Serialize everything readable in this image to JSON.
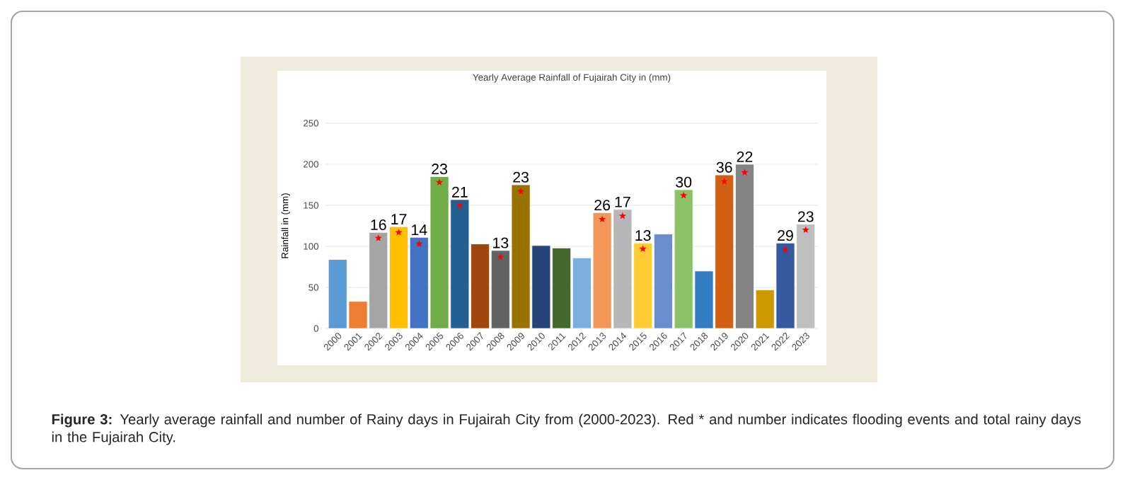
{
  "chart_data": {
    "type": "bar",
    "title": "Yearly Average Rainfall of Fujairah City in (mm)",
    "ylabel": "Rainfall in (mm)",
    "categories": [
      "2000",
      "2001",
      "2002",
      "2003",
      "2004",
      "2005",
      "2006",
      "2007",
      "2008",
      "2009",
      "2010",
      "2011",
      "2012",
      "2013",
      "2014",
      "2015",
      "2016",
      "2017",
      "2018",
      "2019",
      "2020",
      "2021",
      "2022",
      "2023"
    ],
    "values": [
      84,
      33,
      117,
      124,
      111,
      185,
      157,
      103,
      95,
      175,
      101,
      98,
      86,
      141,
      145,
      104,
      115,
      169,
      70,
      187,
      200,
      47,
      104,
      127
    ],
    "colors": [
      "#5b9bd5",
      "#ed7d31",
      "#a5a5a5",
      "#ffc000",
      "#4472c4",
      "#70ad47",
      "#255e91",
      "#9e480e",
      "#636363",
      "#997300",
      "#264478",
      "#43682b",
      "#7cafdd",
      "#f1975a",
      "#b7b7b7",
      "#ffcd33",
      "#698ed0",
      "#8cc168",
      "#327dc2",
      "#d26012",
      "#848484",
      "#cc9a00",
      "#335aa1",
      "#bfbfbf"
    ],
    "series": [
      {
        "type": "scatter",
        "color": "#ff0000",
        "marker": "star",
        "values": [
          null,
          null,
          110,
          117,
          103,
          178,
          150,
          null,
          87,
          167,
          null,
          null,
          null,
          133,
          137,
          97,
          null,
          162,
          null,
          179,
          190,
          null,
          96,
          120
        ]
      }
    ],
    "ylim": [
      0,
      250
    ],
    "yticks": [
      0,
      50,
      100,
      150,
      200,
      250
    ],
    "grid": "y",
    "annotations": [
      {
        "text": "16",
        "x": "2002",
        "y": 117
      },
      {
        "text": "17",
        "x": "2003",
        "y": 124
      },
      {
        "text": "14",
        "x": "2004",
        "y": 111
      },
      {
        "text": "23",
        "x": "2005",
        "y": 185
      },
      {
        "text": "21",
        "x": "2006",
        "y": 157
      },
      {
        "text": "13",
        "x": "2008",
        "y": 95
      },
      {
        "text": "23",
        "x": "2009",
        "y": 175
      },
      {
        "text": "26",
        "x": "2013",
        "y": 141
      },
      {
        "text": "17",
        "x": "2014",
        "y": 145
      },
      {
        "text": "13",
        "x": "2015",
        "y": 104
      },
      {
        "text": "30",
        "x": "2017",
        "y": 169
      },
      {
        "text": "36",
        "x": "2019",
        "y": 187
      },
      {
        "text": "22",
        "x": "2020",
        "y": 200
      },
      {
        "text": "29",
        "x": "2022",
        "y": 104
      },
      {
        "text": "23",
        "x": "2023",
        "y": 127
      },
      "**Figure 3:** Yearly average rainfall and number of Rainy days in Fujairah City from (2000-2023). Red * and number indicates flooding events and total rainy days in the Fujairah City."
    ]
  }
}
